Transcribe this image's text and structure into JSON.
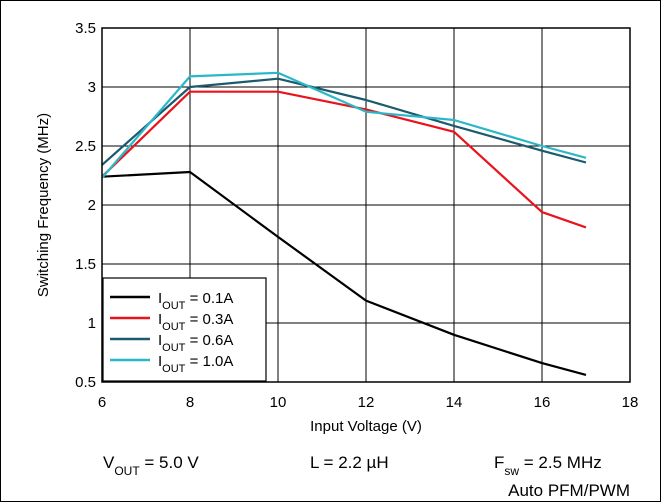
{
  "chart_data": {
    "type": "line",
    "xlabel": "Input Voltage (V)",
    "ylabel": "Switching Frequency (MHz)",
    "xlim": [
      6,
      18
    ],
    "ylim": [
      0.5,
      3.5
    ],
    "x_ticks": [
      "6",
      "8",
      "10",
      "12",
      "14",
      "16",
      "18"
    ],
    "y_ticks": [
      "0.5",
      "1",
      "1.5",
      "2",
      "2.5",
      "3",
      "3.5"
    ],
    "grid": true,
    "legend_position": "bottom-left",
    "series": [
      {
        "label_main": "I",
        "label_sub": "OUT",
        "label_rest": " = 0.1A",
        "color": "#000000",
        "x": [
          6,
          8,
          10,
          12,
          14,
          16,
          17
        ],
        "y": [
          2.24,
          2.28,
          1.73,
          1.19,
          0.9,
          0.66,
          0.56
        ]
      },
      {
        "label_main": "I",
        "label_sub": "OUT",
        "label_rest": " = 0.3A",
        "color": "#e8141c",
        "x": [
          6,
          8,
          10,
          12,
          14,
          16,
          17
        ],
        "y": [
          2.24,
          2.96,
          2.96,
          2.81,
          2.62,
          1.94,
          1.81
        ]
      },
      {
        "label_main": "I",
        "label_sub": "OUT",
        "label_rest": " = 0.6A",
        "color": "#1c5a6e",
        "x": [
          6,
          8,
          10,
          12,
          14,
          16,
          17
        ],
        "y": [
          2.34,
          3.0,
          3.07,
          2.89,
          2.67,
          2.46,
          2.36
        ]
      },
      {
        "label_main": "I",
        "label_sub": "OUT",
        "label_rest": " = 1.0A",
        "color": "#2ab8c8",
        "x": [
          6,
          8,
          10,
          12,
          14,
          16,
          17
        ],
        "y": [
          2.23,
          3.09,
          3.12,
          2.79,
          2.72,
          2.5,
          2.4
        ]
      }
    ]
  },
  "footer": {
    "vout_main": "V",
    "vout_sub": "OUT",
    "vout_rest": " = 5.0 V",
    "inductor": "L = 2.2 µH",
    "fsw_main": "F",
    "fsw_sub": "sw",
    "fsw_rest": " = 2.5 MHz",
    "mode": "Auto PFM/PWM"
  }
}
